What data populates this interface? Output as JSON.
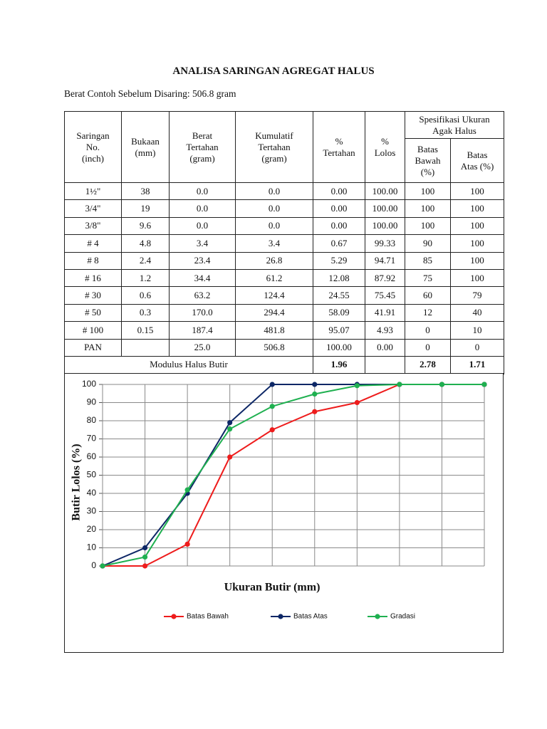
{
  "title": "ANALISA SARINGAN AGREGAT HALUS",
  "subtitle": "Berat Contoh Sebelum Disaring: 506.8 gram",
  "table": {
    "headers": [
      [
        "Saringan",
        "No.",
        "(inch)"
      ],
      [
        "Bukaan",
        "(mm)"
      ],
      [
        "Berat",
        "Tertahan",
        "(gram)"
      ],
      [
        "Kumulatif",
        "Tertahan",
        "(gram)"
      ],
      [
        "%",
        "Tertahan"
      ],
      [
        "%",
        "Lolos"
      ]
    ],
    "group_header": [
      "Spesifikasi Ukuran",
      "Agak Halus"
    ],
    "sub_headers": [
      [
        "Batas",
        "Bawah",
        "(%)"
      ],
      [
        "Batas",
        "Atas (%)"
      ]
    ],
    "rows": [
      [
        "1½\"",
        "38",
        "0.0",
        "0.0",
        "0.00",
        "100.00",
        "100",
        "100"
      ],
      [
        "3/4\"",
        "19",
        "0.0",
        "0.0",
        "0.00",
        "100.00",
        "100",
        "100"
      ],
      [
        "3/8\"",
        "9.6",
        "0.0",
        "0.0",
        "0.00",
        "100.00",
        "100",
        "100"
      ],
      [
        "# 4",
        "4.8",
        "3.4",
        "3.4",
        "0.67",
        "99.33",
        "90",
        "100"
      ],
      [
        "# 8",
        "2.4",
        "23.4",
        "26.8",
        "5.29",
        "94.71",
        "85",
        "100"
      ],
      [
        "# 16",
        "1.2",
        "34.4",
        "61.2",
        "12.08",
        "87.92",
        "75",
        "100"
      ],
      [
        "# 30",
        "0.6",
        "63.2",
        "124.4",
        "24.55",
        "75.45",
        "60",
        "79"
      ],
      [
        "# 50",
        "0.3",
        "170.0",
        "294.4",
        "58.09",
        "41.91",
        "12",
        "40"
      ],
      [
        "# 100",
        "0.15",
        "187.4",
        "481.8",
        "95.07",
        "4.93",
        "0",
        "10"
      ],
      [
        "PAN",
        null,
        "25.0",
        "506.8",
        "100.00",
        "0.00",
        "0",
        "0"
      ]
    ],
    "footer": {
      "label": "Modulus Halus Butir",
      "tertahan": "1.96",
      "batas_bawah": "2.78",
      "batas_atas": "1.71"
    }
  },
  "chart_data": {
    "type": "line",
    "xlabel": "Ukuran Butir (mm)",
    "ylabel": "Butir Lolos (%)",
    "categories": [
      null,
      null,
      null,
      null,
      null,
      null,
      null,
      null,
      null,
      null
    ],
    "series": [
      {
        "name": "Batas Bawah",
        "color": "#ee1c1c",
        "values": [
          0,
          0,
          12,
          60,
          75,
          85,
          90,
          100,
          100,
          100
        ]
      },
      {
        "name": "Batas Atas",
        "color": "#0d2766",
        "values": [
          0,
          10,
          40,
          79,
          100,
          100,
          100,
          100,
          100,
          100
        ]
      },
      {
        "name": "Gradasi",
        "color": "#1fb050",
        "values": [
          0,
          4.93,
          41.91,
          75.45,
          87.92,
          94.71,
          99.33,
          100,
          100,
          100
        ]
      }
    ],
    "ylim": [
      0,
      100
    ],
    "yticks": [
      0,
      10,
      20,
      30,
      40,
      50,
      60,
      70,
      80,
      90,
      100
    ],
    "grid": true,
    "legend": "bottom"
  }
}
